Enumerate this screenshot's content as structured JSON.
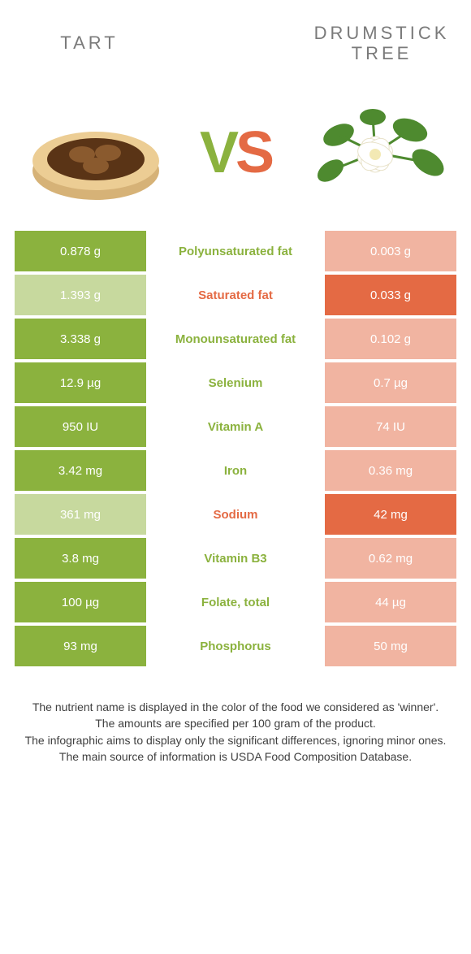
{
  "colors": {
    "left_bg": "#8bb23e",
    "right_bg": "#e46a44",
    "left_dim": "#c7d99e",
    "right_dim": "#f1b4a1",
    "label_left": "#8bb23e",
    "label_right": "#e46a44",
    "value_text": "#ffffff"
  },
  "header": {
    "left_title": "Tart",
    "right_title": "Drumstick tree",
    "vs_v": "V",
    "vs_s": "S"
  },
  "rows": [
    {
      "label": "Polyunsaturated fat",
      "left": "0.878 g",
      "right": "0.003 g",
      "winner": "left"
    },
    {
      "label": "Saturated fat",
      "left": "1.393 g",
      "right": "0.033 g",
      "winner": "right"
    },
    {
      "label": "Monounsaturated fat",
      "left": "3.338 g",
      "right": "0.102 g",
      "winner": "left"
    },
    {
      "label": "Selenium",
      "left": "12.9 µg",
      "right": "0.7 µg",
      "winner": "left"
    },
    {
      "label": "Vitamin A",
      "left": "950 IU",
      "right": "74 IU",
      "winner": "left"
    },
    {
      "label": "Iron",
      "left": "3.42 mg",
      "right": "0.36 mg",
      "winner": "left"
    },
    {
      "label": "Sodium",
      "left": "361 mg",
      "right": "42 mg",
      "winner": "right"
    },
    {
      "label": "Vitamin B3",
      "left": "3.8 mg",
      "right": "0.62 mg",
      "winner": "left"
    },
    {
      "label": "Folate, total",
      "left": "100 µg",
      "right": "44 µg",
      "winner": "left"
    },
    {
      "label": "Phosphorus",
      "left": "93 mg",
      "right": "50 mg",
      "winner": "left"
    }
  ],
  "notes": {
    "l1": "The nutrient name is displayed in the color of the food we considered as 'winner'.",
    "l2": "The amounts are specified per 100 gram of the product.",
    "l3": "The infographic aims to display only the significant differences, ignoring minor ones.",
    "l4": "The main source of information is USDA Food Composition Database."
  }
}
